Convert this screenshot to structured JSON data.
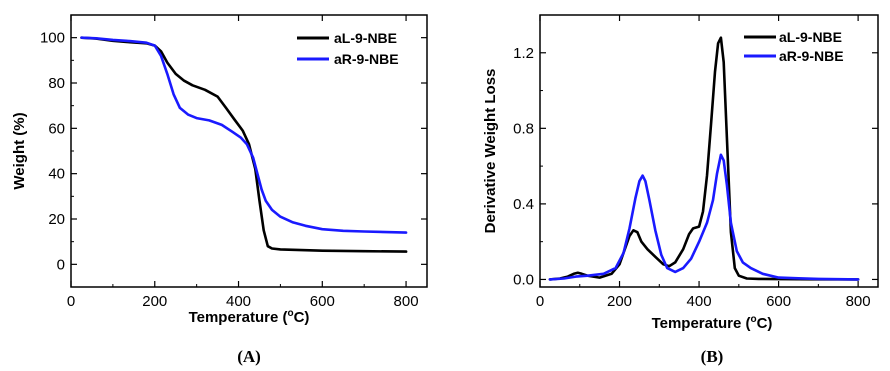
{
  "chart_data": [
    {
      "type": "line",
      "panel_label": "(A)",
      "xlabel_main": "Temperature (",
      "xlabel_deg": "o",
      "xlabel_end": "C)",
      "ylabel": "Weight (%)",
      "xlim": [
        0,
        850
      ],
      "ylim": [
        -10,
        110
      ],
      "xticks": [
        0,
        200,
        400,
        600,
        800
      ],
      "yticks": [
        0,
        20,
        40,
        60,
        80,
        100
      ],
      "tick_labels_x": [
        "0",
        "200",
        "400",
        "600",
        "800"
      ],
      "tick_labels_y": [
        "0",
        "20",
        "40",
        "60",
        "80",
        "100"
      ],
      "legend_position": "top-right",
      "series": [
        {
          "name": "aL-9-NBE",
          "color": "#000000",
          "x": [
            25,
            60,
            100,
            140,
            180,
            200,
            215,
            230,
            250,
            270,
            290,
            320,
            350,
            370,
            390,
            410,
            425,
            440,
            450,
            460,
            470,
            480,
            500,
            550,
            600,
            700,
            800
          ],
          "y": [
            100,
            99.6,
            98.6,
            98.0,
            97.5,
            96.5,
            94,
            89,
            84,
            81,
            79,
            77,
            74,
            69,
            64,
            59,
            53,
            42,
            28,
            15,
            8,
            7,
            6.6,
            6.3,
            6,
            5.8,
            5.6
          ]
        },
        {
          "name": "aR-9-NBE",
          "color": "#1a1aff",
          "x": [
            25,
            60,
            100,
            140,
            180,
            200,
            215,
            230,
            245,
            260,
            280,
            300,
            330,
            360,
            385,
            405,
            420,
            435,
            445,
            455,
            465,
            480,
            500,
            530,
            560,
            600,
            650,
            700,
            800
          ],
          "y": [
            100,
            99.7,
            99,
            98.5,
            97.8,
            96.5,
            92,
            84,
            75,
            69,
            66,
            64.5,
            63.5,
            61.5,
            58.5,
            56,
            53,
            47,
            40,
            33,
            28,
            24,
            21,
            18.5,
            17,
            15.5,
            14.8,
            14.5,
            14
          ]
        }
      ]
    },
    {
      "type": "line",
      "panel_label": "(B)",
      "xlabel_main": "Temperature (",
      "xlabel_deg": "o",
      "xlabel_end": "C)",
      "ylabel": "Derivative Weight Loss",
      "xlim": [
        0,
        850
      ],
      "ylim": [
        -0.04,
        1.4
      ],
      "xticks": [
        0,
        200,
        400,
        600,
        800
      ],
      "yticks": [
        0,
        0.4,
        0.8,
        1.2
      ],
      "tick_labels_x": [
        "0",
        "200",
        "400",
        "600",
        "800"
      ],
      "tick_labels_y": [
        "0.0",
        "0.4",
        "0.8",
        "1.2"
      ],
      "legend_position": "top-right",
      "series": [
        {
          "name": "aL-9-NBE",
          "color": "#000000",
          "x": [
            25,
            50,
            70,
            85,
            95,
            105,
            120,
            150,
            180,
            200,
            215,
            225,
            235,
            245,
            255,
            270,
            290,
            310,
            325,
            340,
            360,
            375,
            385,
            400,
            410,
            420,
            430,
            440,
            448,
            455,
            462,
            470,
            480,
            490,
            500,
            520,
            550,
            600,
            700,
            800
          ],
          "y": [
            0.0,
            0.005,
            0.015,
            0.03,
            0.035,
            0.03,
            0.02,
            0.01,
            0.03,
            0.08,
            0.17,
            0.23,
            0.26,
            0.25,
            0.2,
            0.16,
            0.12,
            0.08,
            0.07,
            0.09,
            0.16,
            0.24,
            0.27,
            0.28,
            0.36,
            0.55,
            0.82,
            1.1,
            1.25,
            1.28,
            1.15,
            0.75,
            0.25,
            0.06,
            0.02,
            0.005,
            0.003,
            0.002,
            0.001,
            0.0
          ]
        },
        {
          "name": "aR-9-NBE",
          "color": "#1a1aff",
          "x": [
            25,
            60,
            90,
            120,
            160,
            190,
            210,
            225,
            240,
            250,
            258,
            265,
            275,
            290,
            305,
            320,
            340,
            360,
            380,
            400,
            420,
            435,
            445,
            455,
            462,
            470,
            480,
            495,
            510,
            530,
            560,
            600,
            650,
            700,
            800
          ],
          "y": [
            0.0,
            0.005,
            0.015,
            0.02,
            0.03,
            0.06,
            0.14,
            0.27,
            0.43,
            0.52,
            0.55,
            0.52,
            0.42,
            0.26,
            0.13,
            0.06,
            0.04,
            0.06,
            0.11,
            0.2,
            0.3,
            0.42,
            0.56,
            0.66,
            0.63,
            0.5,
            0.3,
            0.15,
            0.09,
            0.06,
            0.03,
            0.01,
            0.006,
            0.003,
            0.0
          ]
        }
      ]
    }
  ]
}
